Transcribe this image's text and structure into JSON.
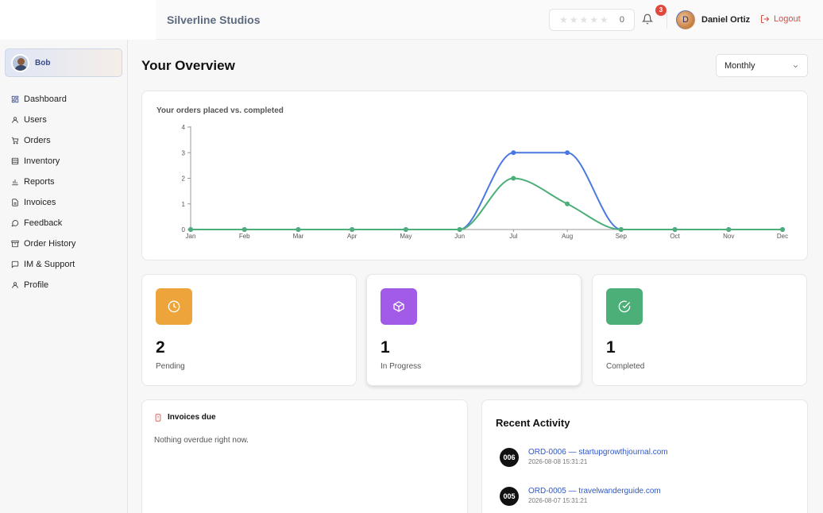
{
  "header": {
    "brand": "Silverline Studios",
    "rating_count": "0",
    "notifications_count": "3",
    "user_initial": "D",
    "user_name": "Daniel Ortiz",
    "logout_label": "Logout"
  },
  "sidebar": {
    "profile_name": "Bob",
    "items": [
      {
        "label": "Dashboard",
        "icon": "grid-icon"
      },
      {
        "label": "Users",
        "icon": "user-icon"
      },
      {
        "label": "Orders",
        "icon": "cart-icon"
      },
      {
        "label": "Inventory",
        "icon": "database-icon"
      },
      {
        "label": "Reports",
        "icon": "bar-chart-icon"
      },
      {
        "label": "Invoices",
        "icon": "document-icon"
      },
      {
        "label": "Feedback",
        "icon": "chat-bubble-icon"
      },
      {
        "label": "Order History",
        "icon": "archive-icon"
      },
      {
        "label": "IM & Support",
        "icon": "message-icon"
      },
      {
        "label": "Profile",
        "icon": "user-icon"
      }
    ]
  },
  "main": {
    "title": "Your Overview",
    "period_select": "Monthly",
    "chart_title": "Your orders placed vs. completed"
  },
  "chart_data": {
    "type": "line",
    "categories": [
      "Jan",
      "Feb",
      "Mar",
      "Apr",
      "May",
      "Jun",
      "Jul",
      "Aug",
      "Sep",
      "Oct",
      "Nov",
      "Dec"
    ],
    "series": [
      {
        "values": [
          0,
          0,
          0,
          0,
          0,
          0,
          3,
          3,
          0,
          0,
          0,
          0
        ],
        "color": "#4a78e0"
      },
      {
        "values": [
          0,
          0,
          0,
          0,
          0,
          0,
          2,
          1,
          0,
          0,
          0,
          0
        ],
        "color": "#4cae78"
      }
    ],
    "ylim": [
      0,
      4
    ],
    "yticks": [
      "0",
      "1",
      "2",
      "3",
      "4"
    ],
    "grid": false
  },
  "stats": [
    {
      "value": "2",
      "label": "Pending",
      "color": "#eda43a",
      "icon": "clock-icon"
    },
    {
      "value": "1",
      "label": "In Progress",
      "color": "#a15be6",
      "icon": "box-icon"
    },
    {
      "value": "1",
      "label": "Completed",
      "color": "#4caf78",
      "icon": "check-circle-icon"
    }
  ],
  "invoices": {
    "title": "Invoices due",
    "empty_text": "Nothing overdue right now."
  },
  "activity": {
    "title": "Recent Activity",
    "items": [
      {
        "badge": "006",
        "text": "ORD-0006 — startupgrowthjournal.com",
        "time": "2026-08-08 15:31:21"
      },
      {
        "badge": "005",
        "text": "ORD-0005 — travelwanderguide.com",
        "time": "2026-08-07 15:31:21"
      }
    ]
  }
}
